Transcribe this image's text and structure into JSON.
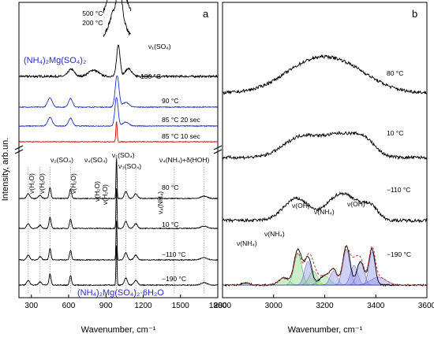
{
  "figure": {
    "ylabel": "Intensity, arb.un.",
    "colors": {
      "black": "#000000",
      "blue": "#1f2fcc",
      "red": "#e00000",
      "label_blue": "#2a2ac8",
      "green": "#7ed67e",
      "violet": "#8a8ae6",
      "fit": "#c0392b"
    }
  },
  "chart_data": [
    {
      "type": "line",
      "panel_label": "a",
      "xlabel": "Wavenumber, cm⁻¹",
      "xlim": [
        200,
        1800
      ],
      "xticks": [
        300,
        600,
        900,
        1200,
        1500,
        1800
      ],
      "compound_top": "(NH₄)₂Mg(SO₄)₂",
      "compound_bottom": "(NH₄)₂Mg(SO₄)₂·6H₂O",
      "band_labels": [
        "ν(H₂O)",
        "ν(H₂O)",
        "ν₂(SO₄)",
        "ν(H₂O)",
        "ν₄(SO₄)",
        "ν(H₂O)",
        "ν(H₂O)",
        "ν₁(SO₄)",
        "ν₃(SO₄)",
        "ν₄(NH₄)",
        "ν₄(NH₄)+δ(HOH)",
        "ν₁(SO₄)"
      ],
      "series": [
        {
          "name": "500 °C",
          "color": "#000000",
          "peaks": [
            [
              990,
              55,
              60
            ],
            [
              1015,
              35,
              18
            ]
          ],
          "noise": 6
        },
        {
          "name": "200 °C",
          "color": "#000000",
          "peaks": [
            [
              990,
              45,
              55
            ],
            [
              1010,
              30,
              16
            ]
          ],
          "noise": 5
        },
        {
          "name": "180 °C",
          "color": "#000000",
          "peaks": [
            [
              620,
              9,
              25
            ],
            [
              800,
              8,
              40
            ],
            [
              1000,
              40,
              14
            ],
            [
              1080,
              10,
              25
            ]
          ],
          "noise": 2.5
        },
        {
          "name": "90 °C",
          "color": "#1f2fcc",
          "peaks": [
            [
              450,
              12,
              18
            ],
            [
              615,
              11,
              16
            ],
            [
              990,
              40,
              15
            ],
            [
              1060,
              6,
              25
            ]
          ],
          "noise": 1
        },
        {
          "name": "85 °C 20 sec",
          "color": "#1f2fcc",
          "peaks": [
            [
              450,
              11,
              18
            ],
            [
              615,
              10,
              16
            ],
            [
              985,
              36,
              13
            ],
            [
              1060,
              5,
              25
            ]
          ],
          "noise": 1
        },
        {
          "name": "85 °C 10 sec",
          "color": "#e00000",
          "peaks": [
            [
              985,
              26,
              5
            ]
          ],
          "noise": 0.8
        },
        {
          "name": "80 °C",
          "color": "#000000",
          "peaks": [
            [
              275,
              6,
              12
            ],
            [
              370,
              4,
              12
            ],
            [
              450,
              14,
              8
            ],
            [
              615,
              12,
              8
            ],
            [
              985,
              52,
              4
            ],
            [
              1060,
              9,
              12
            ],
            [
              1140,
              6,
              14
            ],
            [
              1690,
              3,
              25
            ]
          ],
          "noise": 1
        },
        {
          "name": "10 °C",
          "color": "#000000",
          "peaks": [
            [
              275,
              6,
              12
            ],
            [
              370,
              4,
              12
            ],
            [
              450,
              14,
              8
            ],
            [
              615,
              12,
              8
            ],
            [
              985,
              52,
              4
            ],
            [
              1060,
              9,
              12
            ],
            [
              1140,
              6,
              14
            ],
            [
              1690,
              3,
              25
            ]
          ],
          "noise": 1
        },
        {
          "name": "−110 °C",
          "color": "#000000",
          "peaks": [
            [
              275,
              6,
              12
            ],
            [
              370,
              4,
              12
            ],
            [
              450,
              14,
              8
            ],
            [
              615,
              12,
              8
            ],
            [
              985,
              52,
              4
            ],
            [
              1060,
              9,
              12
            ],
            [
              1140,
              6,
              14
            ],
            [
              1690,
              3,
              25
            ]
          ],
          "noise": 1
        },
        {
          "name": "−190 °C",
          "color": "#000000",
          "peaks": [
            [
              275,
              6,
              12
            ],
            [
              370,
              4,
              12
            ],
            [
              450,
              14,
              8
            ],
            [
              615,
              12,
              8
            ],
            [
              985,
              52,
              4
            ],
            [
              1060,
              9,
              12
            ],
            [
              1140,
              6,
              14
            ],
            [
              1690,
              3,
              25
            ]
          ],
          "noise": 1
        }
      ]
    },
    {
      "type": "line",
      "panel_label": "b",
      "xlabel": "Wavenumber, cm⁻¹",
      "xlim": [
        2800,
        3600
      ],
      "xticks": [
        2800,
        3000,
        3200,
        3400,
        3600
      ],
      "band_labels": [
        "ν(NH₄)",
        "ν(NH₄)",
        "ν(OH)",
        "ν(NH₄)",
        "ν(OH)"
      ],
      "series": [
        {
          "name": "80 °C",
          "color": "#000000",
          "peaks": [
            [
              3130,
              30,
              110
            ],
            [
              3280,
              28,
              110
            ]
          ],
          "noise": 2
        },
        {
          "name": "10 °C",
          "color": "#000000",
          "peaks": [
            [
              3110,
              26,
              70
            ],
            [
              3270,
              28,
              70
            ],
            [
              3360,
              14,
              40
            ]
          ],
          "noise": 2
        },
        {
          "name": "−110 °C",
          "color": "#000000",
          "peaks": [
            [
              3090,
              28,
              50
            ],
            [
              3230,
              14,
              40
            ],
            [
              3290,
              28,
              50
            ],
            [
              3380,
              16,
              30
            ]
          ],
          "noise": 2
        },
        {
          "name": "−190 °C",
          "color": "#000000",
          "peaks": [
            [
              2890,
              3,
              15
            ],
            [
              3040,
              9,
              20
            ],
            [
              3095,
              45,
              15
            ],
            [
              3135,
              35,
              14
            ],
            [
              3200,
              12,
              20
            ],
            [
              3235,
              18,
              14
            ],
            [
              3285,
              50,
              14
            ],
            [
              3340,
              30,
              14
            ],
            [
              3385,
              46,
              12
            ]
          ],
          "noise": 1
        }
      ],
      "fit_components": [
        [
          2890,
          3,
          15
        ],
        [
          3040,
          9,
          20
        ],
        [
          3095,
          40,
          15
        ],
        [
          3135,
          30,
          14
        ],
        [
          3155,
          18,
          16
        ],
        [
          3200,
          12,
          20
        ],
        [
          3235,
          18,
          14
        ],
        [
          3285,
          45,
          14
        ],
        [
          3315,
          25,
          14
        ],
        [
          3340,
          30,
          14
        ],
        [
          3385,
          42,
          12
        ],
        [
          3410,
          10,
          30
        ]
      ]
    }
  ]
}
